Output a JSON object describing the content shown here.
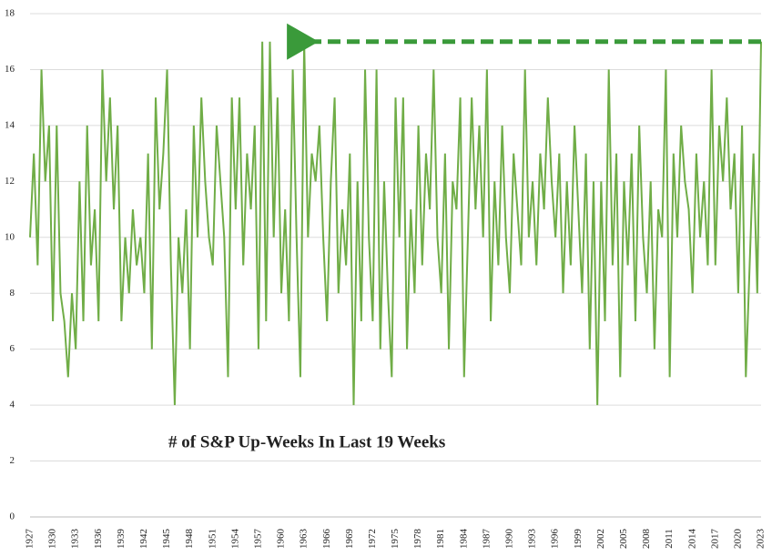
{
  "chart_data": {
    "type": "line",
    "annotation": "# of S&P Up-Weeks In Last 19 Weeks",
    "color": "#70ad47",
    "arrow_color": "#3a9a3a",
    "ylim": [
      0,
      18
    ],
    "yticks": [
      0,
      2,
      4,
      6,
      8,
      10,
      12,
      14,
      16,
      18
    ],
    "grid": true,
    "categories": [
      "1927",
      null,
      null,
      null,
      null,
      null,
      "1930",
      null,
      null,
      null,
      null,
      null,
      "1933",
      null,
      null,
      null,
      null,
      null,
      "1936",
      null,
      null,
      null,
      null,
      null,
      "1939",
      null,
      null,
      null,
      null,
      null,
      "1942",
      null,
      null,
      null,
      null,
      null,
      "1945",
      null,
      null,
      null,
      null,
      null,
      "1948",
      null,
      null,
      null,
      null,
      null,
      "1951",
      null,
      null,
      null,
      null,
      null,
      "1954",
      null,
      null,
      null,
      null,
      null,
      "1957",
      null,
      null,
      null,
      null,
      null,
      "1960",
      null,
      null,
      null,
      null,
      null,
      "1963",
      null,
      null,
      null,
      null,
      null,
      "1966",
      null,
      null,
      null,
      null,
      null,
      "1969",
      null,
      null,
      null,
      null,
      null,
      "1972",
      null,
      null,
      null,
      null,
      null,
      "1975",
      null,
      null,
      null,
      null,
      null,
      "1978",
      null,
      null,
      null,
      null,
      null,
      "1981",
      null,
      null,
      null,
      null,
      null,
      "1984",
      null,
      null,
      null,
      null,
      null,
      "1987",
      null,
      null,
      null,
      null,
      null,
      "1990",
      null,
      null,
      null,
      null,
      null,
      "1993",
      null,
      null,
      null,
      null,
      null,
      "1996",
      null,
      null,
      null,
      null,
      null,
      "1999",
      null,
      null,
      null,
      null,
      null,
      "2002",
      null,
      null,
      null,
      null,
      null,
      "2005",
      null,
      null,
      null,
      null,
      null,
      "2008",
      null,
      null,
      null,
      null,
      null,
      "2011",
      null,
      null,
      null,
      null,
      null,
      "2014",
      null,
      null,
      null,
      null,
      null,
      "2017",
      null,
      null,
      null,
      null,
      null,
      "2020",
      null,
      null,
      null,
      null,
      null,
      "2023"
    ],
    "values": [
      10,
      13,
      9,
      16,
      12,
      14,
      7,
      14,
      8,
      7,
      5,
      8,
      6,
      12,
      7,
      14,
      9,
      11,
      7,
      16,
      12,
      15,
      11,
      14,
      7,
      10,
      8,
      11,
      9,
      10,
      8,
      13,
      6,
      15,
      11,
      13,
      16,
      9,
      4,
      10,
      8,
      11,
      6,
      14,
      10,
      15,
      12,
      10,
      9,
      14,
      12,
      10,
      5,
      15,
      11,
      15,
      9,
      13,
      11,
      14,
      6,
      17,
      7,
      17,
      10,
      15,
      8,
      11,
      7,
      16,
      10,
      5,
      17,
      10,
      13,
      12,
      14,
      10,
      7,
      12,
      15,
      8,
      11,
      9,
      13,
      4,
      12,
      7,
      16,
      10,
      7,
      16,
      6,
      12,
      8,
      5,
      15,
      10,
      15,
      6,
      11,
      8,
      14,
      9,
      13,
      11,
      16,
      10,
      8,
      13,
      6,
      12,
      11,
      15,
      5,
      10,
      15,
      11,
      14,
      10,
      16,
      7,
      12,
      9,
      14,
      10,
      8,
      13,
      11,
      9,
      16,
      10,
      12,
      9,
      13,
      11,
      15,
      12,
      10,
      13,
      8,
      12,
      9,
      14,
      11,
      8,
      13,
      6,
      12,
      4,
      12,
      7,
      16,
      9,
      13,
      5,
      12,
      9,
      13,
      7,
      14,
      10,
      8,
      12,
      6,
      11,
      10,
      16,
      5,
      13,
      10,
      14,
      12,
      11,
      8,
      13,
      10,
      12,
      9,
      16,
      9,
      14,
      12,
      15,
      11,
      13,
      8,
      14,
      5,
      9,
      13,
      8,
      17
    ]
  }
}
